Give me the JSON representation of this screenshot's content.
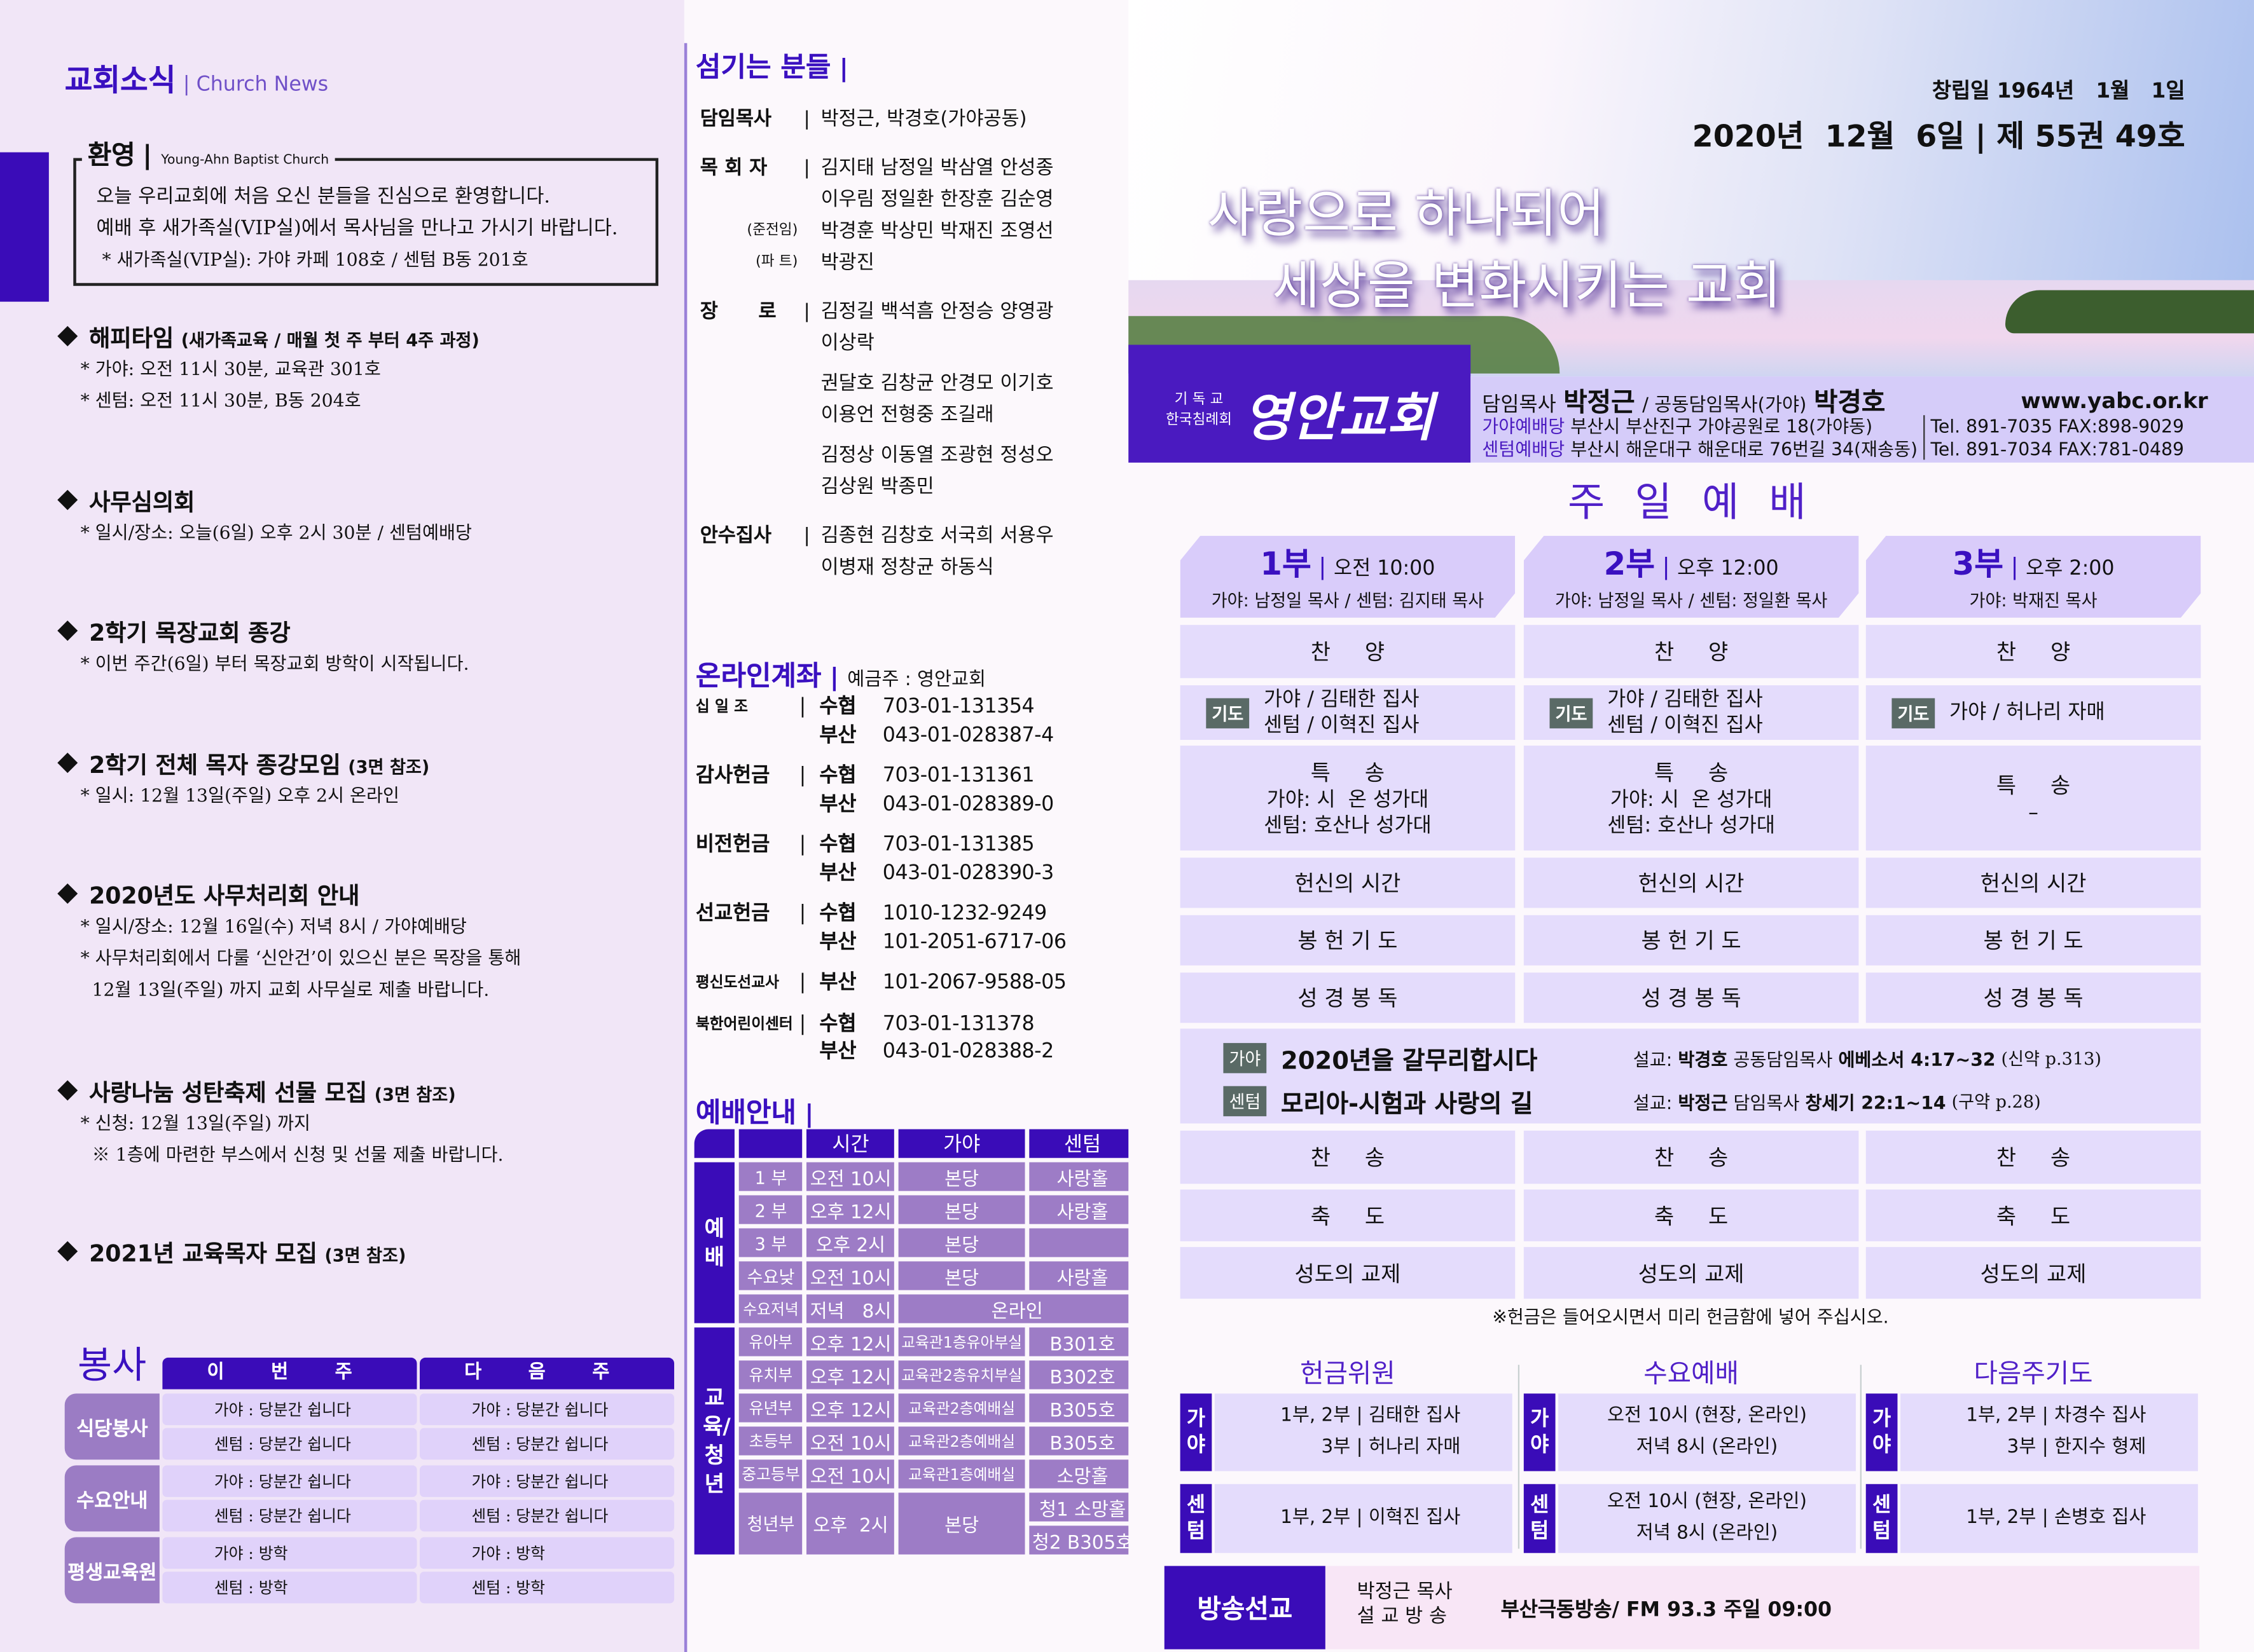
{
  "colors": {
    "accent": "#3a0cb8",
    "lavender": "#e4dcfc",
    "cell_purple": "#9d7cc6",
    "badge": "#5a6a66"
  },
  "news": {
    "title": "교회소식",
    "subtitle": "Church News",
    "welcome": {
      "title": "환영",
      "subtitle": "Young-Ahn Baptist Church",
      "lines": [
        "오늘 우리교회에 처음 오신 분들을 진심으로 환영합니다.",
        "예배 후 새가족실(VIP실)에서 목사님을 만나고 가시기 바랍니다.",
        "* 새가족실(VIP실): 가야 카페 108호 / 센텀 B동 201호"
      ]
    },
    "items": [
      {
        "title": "해피타임",
        "note": "(새가족교육 / 매월 첫 주 부터 4주 과정)",
        "lines": [
          "* 가야: 오전 11시 30분, 교육관 301호",
          "* 센텀: 오전 11시 30분, B동 204호"
        ]
      },
      {
        "title": "사무심의회",
        "note": "",
        "lines": [
          "* 일시/장소: 오늘(6일) 오후 2시 30분 / 센텀예배당"
        ]
      },
      {
        "title": "2학기 목장교회 종강",
        "note": "",
        "lines": [
          "* 이번 주간(6일) 부터 목장교회 방학이 시작됩니다."
        ]
      },
      {
        "title": "2학기 전체 목자 종강모임",
        "note": "(3면 참조)",
        "lines": [
          "* 일시: 12월 13일(주일) 오후 2시 온라인"
        ]
      },
      {
        "title": "2020년도 사무처리회 안내",
        "note": "",
        "lines": [
          "* 일시/장소: 12월 16일(수) 저녁 8시 / 가야예배당",
          "* 사무처리회에서 다룰 ‘신안건’이 있으신 분은 목장을 통해",
          "  12월 13일(주일) 까지 교회 사무실로 제출 바랍니다."
        ]
      },
      {
        "title": "사랑나눔 성탄축제 선물 모집",
        "note": "(3면 참조)",
        "lines": [
          "* 신청: 12월 13일(주일) 까지",
          "  ※ 1층에 마련한 부스에서 신청 및 선물 제출 바랍니다."
        ]
      },
      {
        "title": "2021년 교육목자 모집",
        "note": "(3면 참조)",
        "lines": []
      }
    ]
  },
  "duty": {
    "title": "봉사",
    "headers": [
      "이 번 주",
      "다 음 주"
    ],
    "groups": [
      {
        "label": "식당봉사",
        "rows": [
          [
            "가야 : 당분간 쉽니다",
            "가야 : 당분간 쉽니다"
          ],
          [
            "센텀 : 당분간 쉽니다",
            "센텀 : 당분간 쉽니다"
          ]
        ]
      },
      {
        "label": "수요안내",
        "rows": [
          [
            "가야 : 당분간 쉽니다",
            "가야 : 당분간 쉽니다"
          ],
          [
            "센텀 : 당분간 쉽니다",
            "센텀 : 당분간 쉽니다"
          ]
        ]
      },
      {
        "label": "평생교육원",
        "rows": [
          [
            "가야 : 방학",
            "가야 : 방학"
          ],
          [
            "센텀 : 방학",
            "센텀 : 방학"
          ]
        ]
      }
    ]
  },
  "servants": {
    "title": "섬기는 분들",
    "rows": [
      {
        "role": "담임목사",
        "sub": "",
        "names": [
          "박정근, 박경호(가야공동)"
        ],
        "gap": 0
      },
      {
        "role": "목 회 자",
        "sub": "",
        "names": [
          "김지태 남정일 박삼열 안성종",
          "이우림 정일환 한장훈 김순영"
        ],
        "gap": 12
      },
      {
        "role": "",
        "sub": "(준전임)",
        "names": [
          "박경훈 박상민 박재진 조영선"
        ],
        "gap": 0
      },
      {
        "role": "",
        "sub": "(파   트)",
        "names": [
          "박광진"
        ],
        "gap": 0
      },
      {
        "role": "장      로",
        "sub": "",
        "names": [
          "김정길 백석흠 안정승 양영광",
          "이상락"
        ],
        "gap": 12
      },
      {
        "role": "",
        "sub": "",
        "names": [
          "권달호 김창균 안경모 이기호",
          "이용언 전형중 조길래"
        ],
        "gap": 6
      },
      {
        "role": "",
        "sub": "",
        "names": [
          "김정상 이동열 조광현 정성오",
          "김상원 박종민"
        ],
        "gap": 6
      },
      {
        "role": "안수집사",
        "sub": "",
        "names": [
          "김종현 김창호 서국희 서용우",
          "이병재 정창균 하동식"
        ],
        "gap": 12
      }
    ]
  },
  "accounts": {
    "title": "온라인계좌",
    "holder": "예금주 : 영안교회",
    "groups": [
      {
        "label": "십 일 조",
        "lines": [
          [
            "수협",
            "703-01-131354"
          ],
          [
            "부산",
            "043-01-028387-4"
          ]
        ]
      },
      {
        "label": "감사헌금",
        "lines": [
          [
            "수협",
            "703-01-131361"
          ],
          [
            "부산",
            "043-01-028389-0"
          ]
        ]
      },
      {
        "label": "비전헌금",
        "lines": [
          [
            "수협",
            "703-01-131385"
          ],
          [
            "부산",
            "043-01-028390-3"
          ]
        ]
      },
      {
        "label": "선교헌금",
        "lines": [
          [
            "수협",
            "1010-1232-9249"
          ],
          [
            "부산",
            "101-2051-6717-06"
          ]
        ]
      },
      {
        "label": "평신도선교사",
        "lines": [
          [
            "부산",
            "101-2067-9588-05"
          ]
        ]
      },
      {
        "label": "북한어린이센터",
        "lines": [
          [
            "수협",
            "703-01-131378"
          ],
          [
            "부산",
            "043-01-028388-2"
          ]
        ]
      }
    ]
  },
  "guide": {
    "title": "예배안내",
    "headers": [
      "시간",
      "가야",
      "센텀"
    ],
    "group1": "예배",
    "group2": "교육/청년",
    "worship": [
      [
        "1 부",
        "오전 10시",
        "본당",
        "사랑홀"
      ],
      [
        "2 부",
        "오후 12시",
        "본당",
        "사랑홀"
      ],
      [
        "3 부",
        "오후  2시",
        "본당",
        ""
      ],
      [
        "수요낮",
        "오전 10시",
        "본당",
        "사랑홀"
      ]
    ],
    "wed_evening": [
      "수요저녁",
      "저녁   8시",
      "온라인"
    ],
    "edu": [
      [
        "유아부",
        "오후 12시",
        "교육관1층유아부실",
        "B301호"
      ],
      [
        "유치부",
        "오후 12시",
        "교육관2층유치부실",
        "B302호"
      ],
      [
        "유년부",
        "오후 12시",
        "교육관2층예배실",
        "B305호"
      ],
      [
        "초등부",
        "오전 10시",
        "교육관2층예배실",
        "B305호"
      ],
      [
        "중고등부",
        "오전 10시",
        "교육관1층예배실",
        "소망홀"
      ]
    ],
    "youth": {
      "label": "청년부",
      "time": "오후  2시",
      "gaya": "본당",
      "centum": [
        "청1 소망홀",
        "청2 B305호"
      ]
    }
  },
  "header": {
    "founded": "창립일 1964년   1월   1일",
    "issue": "2020년  12월  6일 | 제 55권 49호",
    "slogan1": "사랑으로 하나되어",
    "slogan2": "세상을 변화시키는 교회",
    "denom1": "기 독 교",
    "denom2": "한국침례회",
    "church": "영안교회",
    "pastors_label1": "담임목사",
    "pastor1": "박정근",
    "pastors_label2": "/ 공동담임목사(가야)",
    "pastor2": "박경호",
    "website": "www.yabc.or.kr",
    "addr": [
      {
        "label": "가야예배당",
        "text": "부산시 부산진구 가야공원로 18(가야동)",
        "tel": "Tel. 891-7035 FAX:898-9029"
      },
      {
        "label": "센텀예배당",
        "text": "부산시 해운대구 해운대로 76번길 34(재송동)",
        "tel": "Tel. 891-7034 FAX:781-0489"
      }
    ]
  },
  "sunday": {
    "title": "주 일 예 배",
    "services": [
      {
        "num": "1부",
        "time": "오전 10:00",
        "leaders": "가야: 남정일 목사 / 센텀: 김지태 목사",
        "prayer": [
          "가야 / 김태한 집사",
          "센텀 / 이혁진 집사"
        ],
        "special": [
          "가야: 시  온 성가대",
          "센텀: 호산나 성가대"
        ]
      },
      {
        "num": "2부",
        "time": "오후 12:00",
        "leaders": "가야: 남정일 목사 / 센텀: 정일환 목사",
        "prayer": [
          "가야 / 김태한 집사",
          "센텀 / 이혁진 집사"
        ],
        "special": [
          "가야: 시  온 성가대",
          "센텀: 호산나 성가대"
        ]
      },
      {
        "num": "3부",
        "time": "오후 2:00",
        "leaders": "가야: 박재진 목사",
        "prayer": [
          "가야 / 허나리 자매"
        ],
        "special": [
          "–"
        ]
      }
    ],
    "order": {
      "praise": "찬     양",
      "prayer_badge": "기도",
      "special": "특     송",
      "dedication": "헌신의 시간",
      "offering": "봉 헌 기 도",
      "scripture": "성 경 봉 독",
      "hymn": "찬     송",
      "benediction": "축     도",
      "fellowship": "성도의 교제"
    },
    "sermons": [
      {
        "site": "가야",
        "title": "2020년을 갈무리합시다",
        "prefix": "설교:",
        "preacher": "박경호",
        "role": "공동담임목사",
        "passage": "에베소서 4:17~32",
        "page": "(신약 p.313)"
      },
      {
        "site": "센텀",
        "title": "모리아-시험과 사랑의 길",
        "prefix": "설교:",
        "preacher": "박정근",
        "role": "담임목사",
        "passage": "창세기 22:1~14",
        "page": "(구약 p.28)"
      }
    ],
    "note": "※헌금은 들어오시면서 미리 헌금함에 넣어 주십시오."
  },
  "panels": [
    {
      "title": "헌금위원",
      "gaya": [
        "1부, 2부 | 김태한 집사",
        "3부 | 허나리 자매"
      ],
      "centum": [
        "1부, 2부 | 이혁진 집사"
      ]
    },
    {
      "title": "수요예배",
      "gaya": [
        "오전 10시 (현장, 온라인)",
        "저녁 8시 (온라인)"
      ],
      "centum": [
        "오전 10시 (현장, 온라인)",
        "저녁 8시 (온라인)"
      ]
    },
    {
      "title": "다음주기도",
      "gaya": [
        "1부, 2부 | 차경수 집사",
        "3부 | 한지수 형제"
      ],
      "centum": [
        "1부, 2부 | 손병호 집사"
      ]
    }
  ],
  "site_labels": {
    "gaya": "가야",
    "centum": "센텀"
  },
  "broadcast": {
    "label": "방송선교",
    "who1": "박정근 목사",
    "who2": "설 교 방 송",
    "info": "부산극동방송/ FM 93.3 주일 09:00"
  }
}
